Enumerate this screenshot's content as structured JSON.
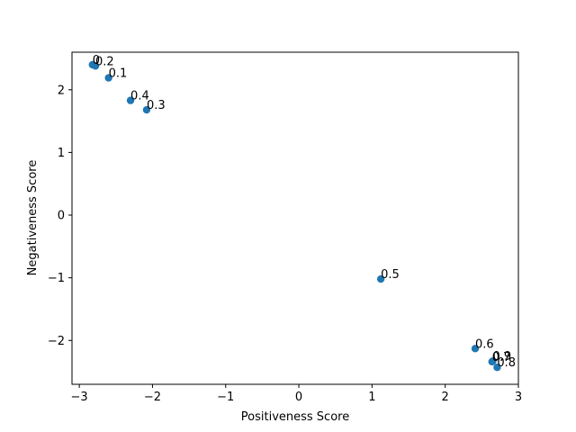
{
  "chart_data": {
    "type": "scatter",
    "title": "",
    "xlabel": "Positiveness Score",
    "ylabel": "Negativeness Score",
    "xlim": [
      -3.1,
      3.0
    ],
    "ylim": [
      -2.7,
      2.6
    ],
    "xticks": [
      -3,
      -2,
      -1,
      0,
      1,
      2,
      3
    ],
    "yticks": [
      -2,
      -1,
      0,
      1,
      2
    ],
    "xtick_labels": [
      "−3",
      "−2",
      "−1",
      "0",
      "1",
      "2",
      "3"
    ],
    "ytick_labels": [
      "−2",
      "−1",
      "0",
      "1",
      "2"
    ],
    "grid": false,
    "marker_color": "#1f77b4",
    "points": [
      {
        "label": "0",
        "x": -2.82,
        "y": 2.4
      },
      {
        "label": "0.2",
        "x": -2.78,
        "y": 2.38
      },
      {
        "label": "0.1",
        "x": -2.6,
        "y": 2.19
      },
      {
        "label": "0.4",
        "x": -2.3,
        "y": 1.83
      },
      {
        "label": "0.3",
        "x": -2.08,
        "y": 1.68
      },
      {
        "label": "0.5",
        "x": 1.12,
        "y": -1.02
      },
      {
        "label": "0.6",
        "x": 2.41,
        "y": -2.13
      },
      {
        "label": "0.7",
        "x": 2.64,
        "y": -2.34
      },
      {
        "label": "0.9",
        "x": 2.65,
        "y": -2.33
      },
      {
        "label": "0.8",
        "x": 2.71,
        "y": -2.43
      }
    ]
  }
}
